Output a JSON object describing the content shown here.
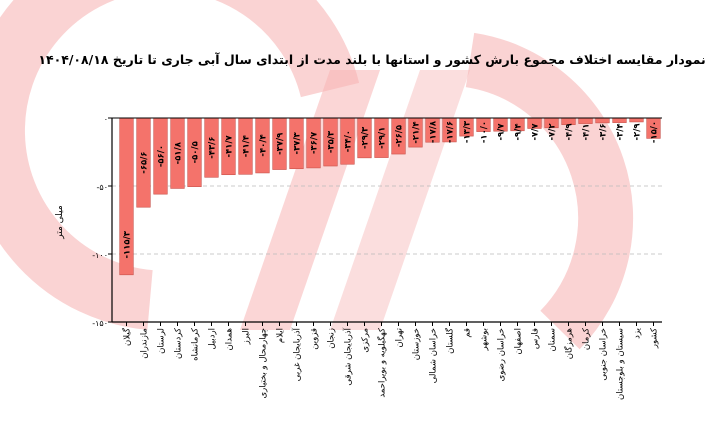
{
  "chart_data": {
    "type": "bar",
    "title": "نمودار مقایسه اختلاف مجموع بارش کشور و استانها با بلند مدت از ابتدای سال آبی جاری تا تاریخ ۱۴۰۴/۰۸/۱۸",
    "ylabel": "میلی متر",
    "xlabel": "",
    "ylim": [
      -150,
      0
    ],
    "yticks": [
      0,
      -50,
      -100,
      -150
    ],
    "ytick_labels": [
      "۰",
      "-۵۰",
      "-۱۰۰",
      "-۱۵۰"
    ],
    "grid": "horizontal dashed",
    "bar_color": "#f4736b",
    "categories": [
      "گیلان",
      "مازندران",
      "لرستان",
      "کردستان",
      "کرمانشاه",
      "اردبیل",
      "همدان",
      "البرز",
      "چهارمحال و بختیاری",
      "ایلام",
      "آذربایجان غربی",
      "قزوین",
      "زنجان",
      "آذربایجان شرقی",
      "مرکزی",
      "کهگیلویه و بویراحمد",
      "تهران",
      "خوزستان",
      "خراسان شمالی",
      "گلستان",
      "قم",
      "بوشهر",
      "خراسان رضوی",
      "اصفهان",
      "فارس",
      "سمنان",
      "هرمزگان",
      "کرمان",
      "خراسان جنوبی",
      "سیستان و بلوچستان",
      "یزد",
      "کشور"
    ],
    "values": [
      -115.3,
      -65.6,
      -56.0,
      -51.8,
      -50.5,
      -43.6,
      -41.7,
      -41.4,
      -40.4,
      -37.9,
      -37.3,
      -36.7,
      -35.3,
      -34.0,
      -29.3,
      -29.1,
      -26.5,
      -21.4,
      -17.8,
      -17.6,
      -13.3,
      -10.0,
      -9.7,
      -9.4,
      -7.7,
      -7.2,
      -4.9,
      -4.1,
      -3.6,
      -3.4,
      -2.9,
      -15.0
    ],
    "data_labels": [
      "-۱۱۵/۳",
      "-۶۵/۶",
      "-۵۶/۰",
      "-۵۱/۸",
      "-۵۰/۵",
      "-۴۳/۶",
      "-۴۱/۷",
      "-۴۱/۴",
      "-۴۰/۴",
      "-۳۷/۹",
      "-۳۷/۳",
      "-۳۶/۷",
      "-۳۵/۳",
      "-۳۴/۰",
      "-۲۹/۳",
      "-۲۹/۱",
      "-۲۶/۵",
      "-۲۱/۴",
      "-۱۷/۸",
      "-۱۷/۶",
      "-۱۳/۳",
      "-۱۰/۰",
      "-۹/۷",
      "-۹/۴",
      "-۷/۷",
      "-۷/۲",
      "-۴/۹",
      "-۴/۱",
      "-۳/۶",
      "-۳/۴",
      "-۲/۹",
      "-۱۵/۰"
    ]
  },
  "watermark_color": "#f7b5b5"
}
